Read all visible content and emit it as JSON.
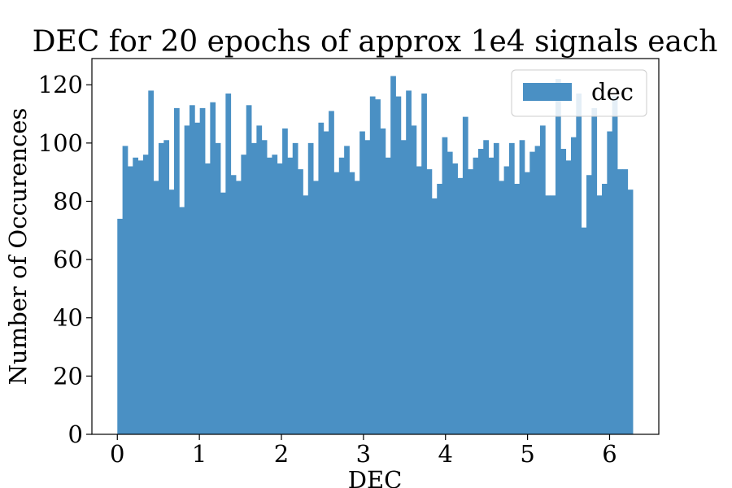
{
  "chart_data": {
    "type": "histogram",
    "title": "DEC for 20 epochs of approx 1e4 signals each",
    "xlabel": "DEC",
    "ylabel": "Number of Occurences",
    "xlim": [
      -0.31,
      6.6
    ],
    "ylim": [
      0,
      129
    ],
    "xticks": [
      0,
      1,
      2,
      3,
      4,
      5,
      6
    ],
    "yticks": [
      0,
      20,
      40,
      60,
      80,
      100,
      120
    ],
    "bin_range": [
      0,
      6.2832
    ],
    "legend": {
      "position": "top-right",
      "entries": [
        "dec"
      ]
    },
    "series": [
      {
        "name": "dec",
        "color": "#4a90c4",
        "values": [
          74,
          99,
          92,
          95,
          94,
          96,
          118,
          87,
          100,
          101,
          84,
          112,
          78,
          106,
          113,
          107,
          112,
          93,
          114,
          100,
          83,
          117,
          89,
          87,
          96,
          113,
          100,
          106,
          101,
          95,
          96,
          93,
          105,
          95,
          100,
          91,
          82,
          100,
          87,
          107,
          104,
          111,
          90,
          95,
          99,
          90,
          87,
          104,
          101,
          116,
          115,
          105,
          95,
          123,
          116,
          101,
          118,
          106,
          92,
          117,
          91,
          81,
          86,
          102,
          97,
          93,
          88,
          109,
          91,
          95,
          98,
          101,
          95,
          100,
          87,
          92,
          100,
          86,
          101,
          90,
          97,
          99,
          106,
          82,
          82,
          122,
          98,
          94,
          102,
          117,
          71,
          89,
          112,
          82,
          86,
          104,
          116,
          91,
          91,
          84
        ]
      }
    ]
  }
}
